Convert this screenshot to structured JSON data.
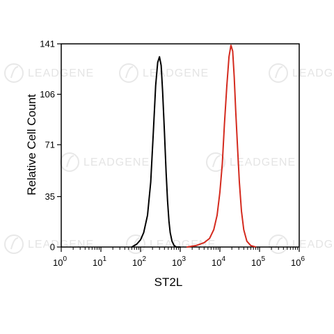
{
  "chart_data": {
    "type": "line",
    "xlabel": "ST2L",
    "ylabel": "Relative Cell Count",
    "xscale": "log",
    "xlim": [
      1,
      1000000
    ],
    "ylim": [
      0,
      141
    ],
    "yticks": [
      0,
      35,
      71,
      106,
      141
    ],
    "xticks": [
      {
        "base": "10",
        "exp": "0"
      },
      {
        "base": "10",
        "exp": "1"
      },
      {
        "base": "10",
        "exp": "2"
      },
      {
        "base": "10",
        "exp": "3"
      },
      {
        "base": "10",
        "exp": "4"
      },
      {
        "base": "10",
        "exp": "5"
      },
      {
        "base": "10",
        "exp": "6"
      }
    ],
    "grid": false,
    "series": [
      {
        "color": "#000000",
        "x": [
          60,
          80,
          100,
          120,
          150,
          180,
          210,
          240,
          270,
          300,
          330,
          360,
          400,
          440,
          480,
          520,
          560,
          620,
          700,
          800,
          900,
          1000
        ],
        "y": [
          0,
          2,
          5,
          10,
          22,
          45,
          80,
          112,
          128,
          132,
          126,
          108,
          80,
          52,
          32,
          18,
          10,
          4,
          1,
          0,
          0,
          0
        ]
      },
      {
        "color": "#d42a1e",
        "x": [
          1500,
          2500,
          4000,
          5500,
          7000,
          8500,
          10000,
          11500,
          13000,
          15000,
          17000,
          19000,
          21000,
          23000,
          25000,
          28000,
          31000,
          35000,
          40000,
          48000,
          60000,
          80000
        ],
        "y": [
          0,
          1,
          3,
          6,
          12,
          22,
          38,
          58,
          85,
          112,
          132,
          140,
          136,
          118,
          95,
          68,
          45,
          25,
          12,
          4,
          1,
          0
        ]
      }
    ]
  },
  "watermark": {
    "text": "LEADGENE"
  }
}
